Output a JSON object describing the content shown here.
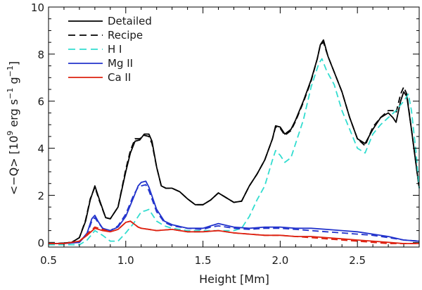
{
  "chart_data": {
    "type": "line",
    "title": "",
    "xlabel": "Height [Mm]",
    "ylabel_parts": {
      "pre": "<−Q> [10",
      "sup1": "9",
      "mid1": " erg s",
      "sup2": "−1",
      "mid2": " g",
      "sup3": "−1",
      "post": "]"
    },
    "xlim": [
      0.5,
      2.9
    ],
    "ylim": [
      -0.2,
      10
    ],
    "xticks": [
      0.5,
      1.0,
      1.5,
      2.0,
      2.5
    ],
    "xtick_labels": [
      "0.5",
      "1.0",
      "1.5",
      "2.0",
      "2.5"
    ],
    "yticks": [
      0,
      2,
      4,
      6,
      8,
      10
    ],
    "ytick_labels": [
      "0",
      "2",
      "4",
      "6",
      "8",
      "10"
    ],
    "legend_position": "top-left",
    "series": [
      {
        "name": "Detailed",
        "label": "Detailed",
        "color": "#000000",
        "dash": "solid",
        "x": [
          0.5,
          0.55,
          0.6,
          0.65,
          0.7,
          0.74,
          0.77,
          0.8,
          0.83,
          0.87,
          0.9,
          0.95,
          1.0,
          1.03,
          1.06,
          1.09,
          1.12,
          1.15,
          1.17,
          1.2,
          1.23,
          1.26,
          1.3,
          1.35,
          1.4,
          1.45,
          1.5,
          1.55,
          1.6,
          1.65,
          1.7,
          1.75,
          1.8,
          1.85,
          1.9,
          1.95,
          1.97,
          2.0,
          2.03,
          2.07,
          2.1,
          2.15,
          2.2,
          2.24,
          2.26,
          2.28,
          2.31,
          2.34,
          2.4,
          2.45,
          2.5,
          2.55,
          2.6,
          2.65,
          2.7,
          2.73,
          2.75,
          2.78,
          2.8,
          2.82,
          2.85,
          2.88,
          2.9
        ],
        "values": [
          -0.05,
          -0.05,
          -0.03,
          0,
          0.2,
          0.9,
          1.8,
          2.4,
          1.8,
          1.05,
          1.0,
          1.5,
          3.0,
          3.8,
          4.3,
          4.35,
          4.6,
          4.6,
          4.3,
          3.2,
          2.4,
          2.3,
          2.3,
          2.15,
          1.85,
          1.6,
          1.6,
          1.8,
          2.1,
          1.9,
          1.7,
          1.75,
          2.4,
          2.9,
          3.5,
          4.4,
          4.95,
          4.9,
          4.6,
          4.8,
          5.2,
          6.0,
          6.9,
          7.8,
          8.4,
          8.6,
          7.9,
          7.4,
          6.4,
          5.3,
          4.4,
          4.2,
          4.8,
          5.3,
          5.5,
          5.3,
          5.1,
          6.0,
          6.4,
          6.2,
          4.8,
          3.3,
          2.3
        ]
      },
      {
        "name": "Recipe",
        "label": "Recipe",
        "color": "#000000",
        "dash": "dashed",
        "x": [
          0.5,
          0.55,
          0.6,
          0.65,
          0.7,
          0.74,
          0.77,
          0.8,
          0.83,
          0.87,
          0.9,
          0.95,
          1.0,
          1.03,
          1.06,
          1.09,
          1.12,
          1.15,
          1.17,
          1.2,
          1.23,
          1.26,
          1.3,
          1.35,
          1.4,
          1.45,
          1.5,
          1.55,
          1.6,
          1.65,
          1.7,
          1.75,
          1.8,
          1.85,
          1.9,
          1.95,
          1.97,
          2.0,
          2.03,
          2.07,
          2.1,
          2.15,
          2.2,
          2.24,
          2.26,
          2.28,
          2.31,
          2.34,
          2.4,
          2.45,
          2.5,
          2.55,
          2.6,
          2.65,
          2.7,
          2.73,
          2.75,
          2.78,
          2.8,
          2.82,
          2.85,
          2.88,
          2.9
        ],
        "values": [
          -0.05,
          -0.05,
          -0.03,
          0,
          0.2,
          0.95,
          1.85,
          2.35,
          1.75,
          1.05,
          1.0,
          1.5,
          3.1,
          3.9,
          4.4,
          4.4,
          4.55,
          4.5,
          4.2,
          3.2,
          2.4,
          2.3,
          2.3,
          2.15,
          1.85,
          1.6,
          1.6,
          1.8,
          2.1,
          1.9,
          1.7,
          1.75,
          2.4,
          2.9,
          3.5,
          4.4,
          4.9,
          4.85,
          4.55,
          4.75,
          5.15,
          5.95,
          6.85,
          7.8,
          8.4,
          8.5,
          7.9,
          7.4,
          6.4,
          5.3,
          4.4,
          4.1,
          4.9,
          5.3,
          5.6,
          5.6,
          5.5,
          6.3,
          6.6,
          6.3,
          4.8,
          3.3,
          2.3
        ]
      },
      {
        "name": "H I",
        "label": "H I",
        "color": "#33ddd0",
        "dash": "dashed",
        "x": [
          0.5,
          0.6,
          0.7,
          0.75,
          0.8,
          0.85,
          0.9,
          0.95,
          1.0,
          1.05,
          1.1,
          1.13,
          1.15,
          1.2,
          1.25,
          1.3,
          1.4,
          1.5,
          1.6,
          1.7,
          1.75,
          1.8,
          1.85,
          1.9,
          1.95,
          1.97,
          2.0,
          2.03,
          2.07,
          2.1,
          2.15,
          2.2,
          2.25,
          2.27,
          2.3,
          2.35,
          2.4,
          2.45,
          2.5,
          2.55,
          2.6,
          2.65,
          2.7,
          2.75,
          2.8,
          2.83,
          2.85,
          2.88,
          2.9
        ],
        "values": [
          -0.1,
          -0.1,
          -0.1,
          0.1,
          0.5,
          0.3,
          0.05,
          0.05,
          0.4,
          0.8,
          1.3,
          1.35,
          1.4,
          0.9,
          0.7,
          0.6,
          0.5,
          0.5,
          0.5,
          0.5,
          0.6,
          1.1,
          1.8,
          2.4,
          3.5,
          3.9,
          3.7,
          3.4,
          3.6,
          4.2,
          5.2,
          6.6,
          7.6,
          7.8,
          7.3,
          6.7,
          5.6,
          4.8,
          4.0,
          3.8,
          4.6,
          5.0,
          5.3,
          5.6,
          6.0,
          6.3,
          5.6,
          3.8,
          2.3
        ]
      },
      {
        "name": "Mg II",
        "label": "Mg II",
        "color": "#2233cc",
        "dash": "solid",
        "x": [
          0.5,
          0.6,
          0.7,
          0.75,
          0.78,
          0.8,
          0.82,
          0.85,
          0.9,
          0.95,
          1.0,
          1.05,
          1.08,
          1.1,
          1.13,
          1.15,
          1.2,
          1.25,
          1.3,
          1.4,
          1.5,
          1.55,
          1.6,
          1.7,
          1.8,
          1.9,
          2.0,
          2.1,
          2.2,
          2.3,
          2.4,
          2.5,
          2.6,
          2.7,
          2.8,
          2.9
        ],
        "values": [
          -0.05,
          -0.05,
          0,
          0.4,
          1.0,
          1.15,
          0.9,
          0.6,
          0.5,
          0.65,
          1.1,
          1.9,
          2.4,
          2.55,
          2.6,
          2.35,
          1.4,
          0.9,
          0.75,
          0.6,
          0.6,
          0.7,
          0.8,
          0.65,
          0.6,
          0.65,
          0.65,
          0.6,
          0.6,
          0.55,
          0.5,
          0.45,
          0.35,
          0.25,
          0.1,
          0.05
        ]
      },
      {
        "name": "Mg II (recipe)",
        "color": "#2233cc",
        "dash": "dashed",
        "x": [
          0.5,
          0.6,
          0.7,
          0.75,
          0.78,
          0.8,
          0.82,
          0.85,
          0.9,
          0.95,
          1.0,
          1.05,
          1.08,
          1.1,
          1.13,
          1.15,
          1.2,
          1.25,
          1.3,
          1.4,
          1.5,
          1.55,
          1.6,
          1.7,
          1.8,
          1.9,
          2.0,
          2.1,
          2.2,
          2.3,
          2.4,
          2.5,
          2.6,
          2.7,
          2.8,
          2.9
        ],
        "values": [
          -0.05,
          -0.05,
          0,
          0.35,
          0.9,
          1.05,
          0.85,
          0.6,
          0.5,
          0.7,
          1.2,
          2.0,
          2.35,
          2.4,
          2.45,
          2.2,
          1.3,
          0.85,
          0.7,
          0.6,
          0.55,
          0.65,
          0.7,
          0.6,
          0.55,
          0.6,
          0.6,
          0.55,
          0.5,
          0.45,
          0.4,
          0.35,
          0.3,
          0.2,
          0.1,
          0.05
        ]
      },
      {
        "name": "Ca II",
        "label": "Ca II",
        "color": "#dd2211",
        "dash": "solid",
        "x": [
          0.5,
          0.6,
          0.7,
          0.75,
          0.8,
          0.85,
          0.9,
          0.95,
          1.0,
          1.03,
          1.05,
          1.08,
          1.1,
          1.15,
          1.2,
          1.3,
          1.4,
          1.5,
          1.6,
          1.7,
          1.8,
          1.9,
          2.0,
          2.1,
          2.2,
          2.3,
          2.4,
          2.5,
          2.6,
          2.7,
          2.8,
          2.9
        ],
        "values": [
          -0.05,
          -0.05,
          0.05,
          0.3,
          0.6,
          0.5,
          0.45,
          0.55,
          0.85,
          0.9,
          0.8,
          0.65,
          0.6,
          0.55,
          0.5,
          0.55,
          0.45,
          0.45,
          0.5,
          0.4,
          0.35,
          0.3,
          0.3,
          0.25,
          0.25,
          0.2,
          0.15,
          0.1,
          0.05,
          0.0,
          -0.05,
          -0.05
        ]
      },
      {
        "name": "Ca II (recipe)",
        "color": "#dd2211",
        "dash": "dashed",
        "x": [
          0.5,
          0.6,
          0.7,
          0.75,
          0.8,
          0.85,
          0.9,
          0.95,
          1.0,
          1.03,
          1.05,
          1.08,
          1.1,
          1.15,
          1.2,
          1.3,
          1.4,
          1.5,
          1.6,
          1.7,
          1.8,
          1.9,
          2.0,
          2.1,
          2.2,
          2.3,
          2.4,
          2.5,
          2.6,
          2.7,
          2.8,
          2.9
        ],
        "values": [
          -0.05,
          -0.05,
          0.05,
          0.35,
          0.65,
          0.55,
          0.45,
          0.55,
          0.85,
          0.9,
          0.8,
          0.65,
          0.6,
          0.55,
          0.5,
          0.55,
          0.45,
          0.45,
          0.5,
          0.4,
          0.35,
          0.3,
          0.3,
          0.25,
          0.2,
          0.15,
          0.1,
          0.05,
          0.0,
          -0.05,
          -0.05,
          -0.05
        ]
      }
    ]
  }
}
